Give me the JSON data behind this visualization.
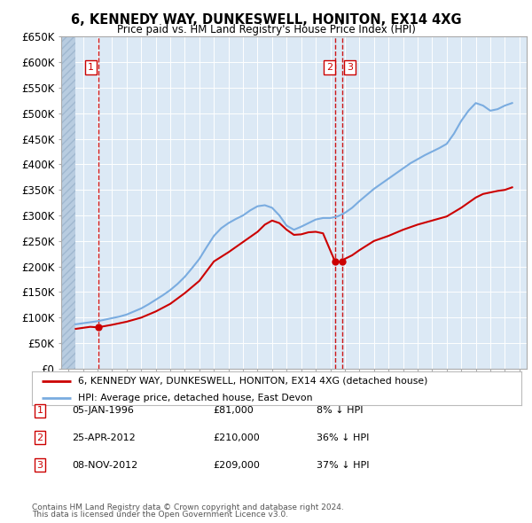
{
  "title": "6, KENNEDY WAY, DUNKESWELL, HONITON, EX14 4XG",
  "subtitle": "Price paid vs. HM Land Registry's House Price Index (HPI)",
  "legend_line1": "6, KENNEDY WAY, DUNKESWELL, HONITON, EX14 4XG (detached house)",
  "legend_line2": "HPI: Average price, detached house, East Devon",
  "footer1": "Contains HM Land Registry data © Crown copyright and database right 2024.",
  "footer2": "This data is licensed under the Open Government Licence v3.0.",
  "sales": [
    {
      "num": 1,
      "date": "05-JAN-1996",
      "price": 81000,
      "pct": "8% ↓ HPI",
      "year": 1996.03
    },
    {
      "num": 2,
      "date": "25-APR-2012",
      "price": 210000,
      "pct": "36% ↓ HPI",
      "year": 2012.32
    },
    {
      "num": 3,
      "date": "08-NOV-2012",
      "price": 209000,
      "pct": "37% ↓ HPI",
      "year": 2012.85
    }
  ],
  "hpi_x": [
    1994.5,
    1995.0,
    1995.5,
    1996.0,
    1996.5,
    1997.0,
    1997.5,
    1998.0,
    1998.5,
    1999.0,
    1999.5,
    2000.0,
    2000.5,
    2001.0,
    2001.5,
    2002.0,
    2002.5,
    2003.0,
    2003.5,
    2004.0,
    2004.5,
    2005.0,
    2005.5,
    2006.0,
    2006.5,
    2007.0,
    2007.5,
    2008.0,
    2008.5,
    2009.0,
    2009.5,
    2010.0,
    2010.5,
    2011.0,
    2011.5,
    2012.0,
    2012.5,
    2013.0,
    2013.5,
    2014.0,
    2014.5,
    2015.0,
    2015.5,
    2016.0,
    2016.5,
    2017.0,
    2017.5,
    2018.0,
    2018.5,
    2019.0,
    2019.5,
    2020.0,
    2020.5,
    2021.0,
    2021.5,
    2022.0,
    2022.5,
    2023.0,
    2023.5,
    2024.0,
    2024.5
  ],
  "hpi_y": [
    87000,
    89000,
    91000,
    93000,
    96000,
    99000,
    102000,
    106000,
    112000,
    118000,
    126000,
    135000,
    144000,
    154000,
    166000,
    180000,
    197000,
    215000,
    238000,
    260000,
    275000,
    285000,
    293000,
    300000,
    310000,
    318000,
    320000,
    315000,
    300000,
    280000,
    272000,
    278000,
    285000,
    292000,
    295000,
    295000,
    298000,
    305000,
    315000,
    328000,
    340000,
    352000,
    362000,
    372000,
    382000,
    392000,
    402000,
    410000,
    418000,
    425000,
    432000,
    440000,
    460000,
    485000,
    505000,
    520000,
    515000,
    505000,
    508000,
    515000,
    520000
  ],
  "price_x": [
    1994.5,
    1995.0,
    1995.5,
    1996.03,
    1997.0,
    1998.0,
    1999.0,
    2000.0,
    2001.0,
    2002.0,
    2003.0,
    2004.0,
    2005.0,
    2006.0,
    2007.0,
    2007.5,
    2008.0,
    2008.5,
    2009.0,
    2009.5,
    2010.0,
    2010.5,
    2011.0,
    2011.5,
    2012.32,
    2012.85,
    2013.0,
    2013.5,
    2014.0,
    2015.0,
    2016.0,
    2017.0,
    2018.0,
    2019.0,
    2020.0,
    2021.0,
    2022.0,
    2022.5,
    2023.0,
    2023.5,
    2024.0,
    2024.5
  ],
  "price_y": [
    78000,
    80000,
    82000,
    81000,
    86000,
    92000,
    100000,
    112000,
    127000,
    148000,
    172000,
    210000,
    228000,
    248000,
    268000,
    282000,
    290000,
    285000,
    272000,
    262000,
    263000,
    267000,
    268000,
    265000,
    210000,
    209000,
    215000,
    222000,
    232000,
    250000,
    260000,
    272000,
    282000,
    290000,
    298000,
    315000,
    335000,
    342000,
    345000,
    348000,
    350000,
    355000
  ],
  "ylim": [
    0,
    650000
  ],
  "yticks": [
    0,
    50000,
    100000,
    150000,
    200000,
    250000,
    300000,
    350000,
    400000,
    450000,
    500000,
    550000,
    600000,
    650000
  ],
  "xlim": [
    1993.5,
    2025.5
  ],
  "hatch_end": 1994.5,
  "plot_bg": "#dce9f5",
  "hatch_color": "#b8cce0",
  "line_color_red": "#cc0000",
  "line_color_blue": "#7aace0",
  "sale_dot_color": "#cc0000",
  "vline_color": "#cc0000",
  "box_edge_color": "#cc0000",
  "box_text_color": "#cc0000",
  "grid_color": "#ffffff",
  "spine_color": "#aaaaaa"
}
